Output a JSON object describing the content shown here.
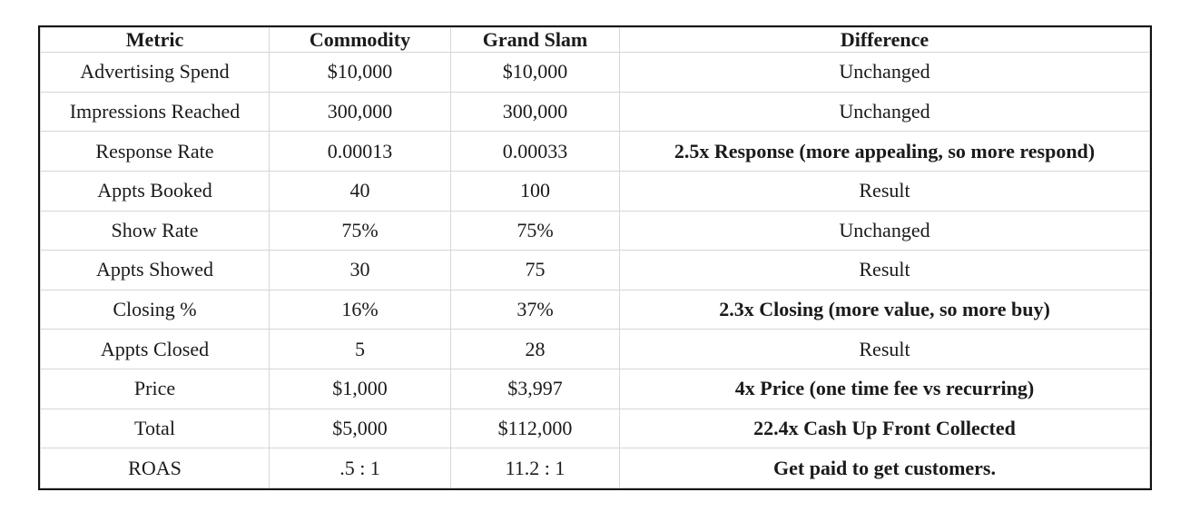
{
  "table": {
    "headers": [
      "Metric",
      "Commodity",
      "Grand Slam",
      "Difference"
    ],
    "rows": [
      {
        "metric": "Advertising Spend",
        "commodity": "$10,000",
        "grand_slam": "$10,000",
        "difference": "Unchanged",
        "bold": false
      },
      {
        "metric": "Impressions Reached",
        "commodity": "300,000",
        "grand_slam": "300,000",
        "difference": "Unchanged",
        "bold": false
      },
      {
        "metric": "Response Rate",
        "commodity": "0.00013",
        "grand_slam": "0.00033",
        "difference": "2.5x Response (more appealing, so more respond)",
        "bold": true
      },
      {
        "metric": "Appts Booked",
        "commodity": "40",
        "grand_slam": "100",
        "difference": "Result",
        "bold": false
      },
      {
        "metric": "Show Rate",
        "commodity": "75%",
        "grand_slam": "75%",
        "difference": "Unchanged",
        "bold": false
      },
      {
        "metric": "Appts Showed",
        "commodity": "30",
        "grand_slam": "75",
        "difference": "Result",
        "bold": false
      },
      {
        "metric": "Closing %",
        "commodity": "16%",
        "grand_slam": "37%",
        "difference": "2.3x Closing (more value, so more buy)",
        "bold": true
      },
      {
        "metric": "Appts Closed",
        "commodity": "5",
        "grand_slam": "28",
        "difference": "Result",
        "bold": false
      },
      {
        "metric": "Price",
        "commodity": "$1,000",
        "grand_slam": "$3,997",
        "difference": "4x Price (one time fee vs recurring)",
        "bold": true
      },
      {
        "metric": "Total",
        "commodity": "$5,000",
        "grand_slam": "$112,000",
        "difference": "22.4x Cash Up Front Collected",
        "bold": true
      },
      {
        "metric": "ROAS",
        "commodity": ".5 : 1",
        "grand_slam": "11.2 : 1",
        "difference": "Get paid to get customers.",
        "bold": true
      }
    ]
  }
}
